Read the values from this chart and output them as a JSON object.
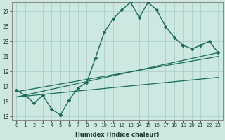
{
  "xlabel": "Humidex (Indice chaleur)",
  "ylabel": "",
  "xlim": [
    -0.5,
    23.5
  ],
  "ylim": [
    12.5,
    28.2
  ],
  "xticks": [
    0,
    1,
    2,
    3,
    4,
    5,
    6,
    7,
    8,
    9,
    10,
    11,
    12,
    13,
    14,
    15,
    16,
    17,
    18,
    19,
    20,
    21,
    22,
    23
  ],
  "yticks": [
    13,
    15,
    17,
    19,
    21,
    23,
    25,
    27
  ],
  "bg_color": "#cce8e0",
  "grid_color": "#b0d4cc",
  "line_color": "#1a6b5a",
  "line1_x": [
    0,
    1,
    2,
    3,
    4,
    5,
    6,
    7,
    8,
    9,
    10,
    11,
    12,
    13,
    14,
    15,
    16,
    17,
    18,
    19,
    20,
    21,
    22,
    23
  ],
  "line1_y": [
    16.5,
    15.8,
    14.8,
    15.8,
    14.0,
    13.2,
    15.2,
    16.8,
    17.5,
    20.8,
    24.2,
    26.0,
    27.2,
    28.2,
    26.2,
    28.2,
    27.2,
    25.0,
    23.5,
    22.5,
    22.0,
    22.5,
    23.0,
    21.5
  ],
  "line2_x": [
    0,
    23
  ],
  "line2_y": [
    15.6,
    21.5
  ],
  "line3_x": [
    0,
    23
  ],
  "line3_y": [
    15.6,
    18.2
  ],
  "line4_x": [
    0,
    23
  ],
  "line4_y": [
    16.3,
    21.0
  ]
}
